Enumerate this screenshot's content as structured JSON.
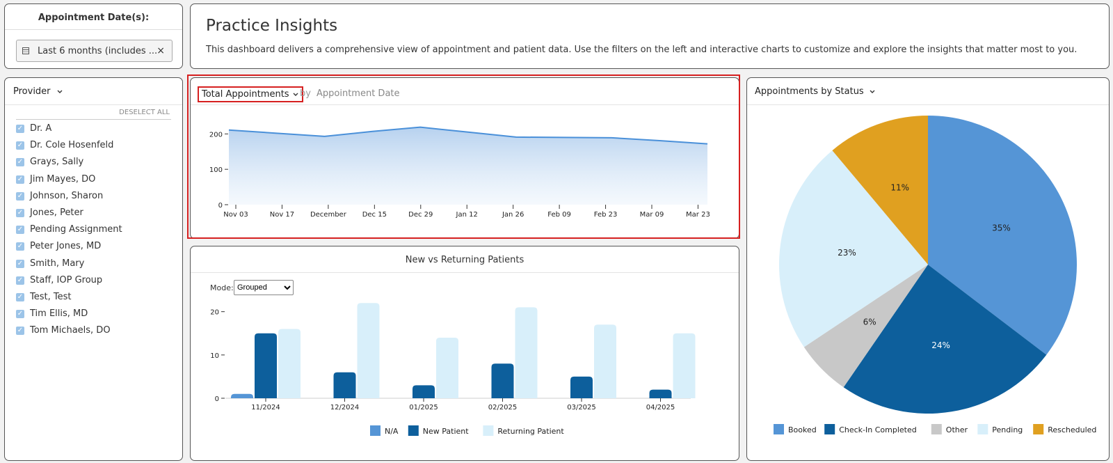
{
  "date_filter": {
    "label": "Appointment Date(s):",
    "value": "Last 6 months (includes ...",
    "clear": "×"
  },
  "header": {
    "title": "Practice Insights",
    "description": "This dashboard delivers a comprehensive view of appointment and patient data. Use the filters on the left and interactive charts to customize and explore the insights that matter most to you."
  },
  "provider": {
    "label": "Provider",
    "deselect_all": "DESELECT ALL",
    "items": [
      {
        "label": "Dr. A",
        "checked": true
      },
      {
        "label": "Dr. Cole Hosenfeld",
        "checked": true
      },
      {
        "label": "Grays, Sally",
        "checked": true
      },
      {
        "label": "Jim Mayes, DO",
        "checked": true
      },
      {
        "label": "Johnson, Sharon",
        "checked": true
      },
      {
        "label": "Jones, Peter",
        "checked": true
      },
      {
        "label": "Pending Assignment",
        "checked": true
      },
      {
        "label": "Peter Jones, MD",
        "checked": true
      },
      {
        "label": "Smith, Mary",
        "checked": true
      },
      {
        "label": "Staff, IOP Group",
        "checked": true
      },
      {
        "label": "Test, Test",
        "checked": true
      },
      {
        "label": "Tim Ellis, MD",
        "checked": true
      },
      {
        "label": "Tom Michaels, DO",
        "checked": true
      }
    ]
  },
  "total_chart": {
    "metric": "Total Appointments",
    "by": "by",
    "dimension": "Appointment Date"
  },
  "nvr_chart": {
    "title": "New vs Returning Patients",
    "mode_label": "Mode:",
    "mode_value": "Grouped",
    "mode_options": [
      "Grouped"
    ]
  },
  "status_chart": {
    "title": "Appointments by Status"
  },
  "colors": {
    "line": "#4a90d9",
    "booked": "#5595d6",
    "checkin": "#0d5f9c",
    "other": "#c8c8c8",
    "pending": "#d8effa",
    "rescheduled": "#e0a020",
    "highlight": "#d62020"
  },
  "chart_data": [
    {
      "type": "area",
      "x": [
        "Nov 03",
        "Nov 17",
        "December",
        "Dec 15",
        "Dec 29",
        "Jan 12",
        "Jan 26",
        "Feb 09",
        "Feb 23",
        "Mar 09",
        "Mar 23"
      ],
      "ticks_x": [
        "Nov 03",
        "Nov 17",
        "December",
        "Dec 15",
        "Dec 29",
        "Jan 12",
        "Jan 26",
        "Feb 09",
        "Feb 23",
        "Mar 09",
        "Mar 23"
      ],
      "points": [
        [
          0,
          211
        ],
        [
          1,
          202
        ],
        [
          2,
          193
        ],
        [
          3,
          207
        ],
        [
          4,
          219
        ],
        [
          5,
          205
        ],
        [
          6,
          191
        ],
        [
          7,
          190
        ],
        [
          8,
          189
        ],
        [
          9,
          181
        ],
        [
          10,
          172
        ]
      ],
      "y_ticks": [
        0,
        100,
        200
      ],
      "ylim": [
        0,
        240
      ],
      "grid": false
    },
    {
      "type": "bar",
      "categories": [
        "11/2024",
        "12/2024",
        "01/2025",
        "02/2025",
        "03/2025",
        "04/2025"
      ],
      "series": [
        {
          "name": "N/A",
          "values": [
            1,
            0,
            0,
            0,
            0,
            0
          ],
          "color": "#5595d6"
        },
        {
          "name": "New Patient",
          "values": [
            15,
            6,
            3,
            8,
            5,
            2
          ],
          "color": "#0d5f9c"
        },
        {
          "name": "Returning Patient",
          "values": [
            16,
            22,
            14,
            21,
            17,
            15
          ],
          "color": "#d8effa"
        }
      ],
      "y_ticks": [
        0,
        10,
        20
      ],
      "ylim": [
        0,
        23
      ],
      "legend": "bottom"
    },
    {
      "type": "pie",
      "slices": [
        {
          "label": "Booked",
          "value": 35,
          "text": "35%",
          "color": "#5595d6"
        },
        {
          "label": "Check-In Completed",
          "value": 24,
          "text": "24%",
          "color": "#0d5f9c"
        },
        {
          "label": "Other",
          "value": 6,
          "text": "6%",
          "color": "#c8c8c8"
        },
        {
          "label": "Pending",
          "value": 23,
          "text": "23%",
          "color": "#d8effa"
        },
        {
          "label": "Rescheduled",
          "value": 11,
          "text": "11%",
          "color": "#e0a020"
        }
      ],
      "legend": "bottom"
    }
  ]
}
